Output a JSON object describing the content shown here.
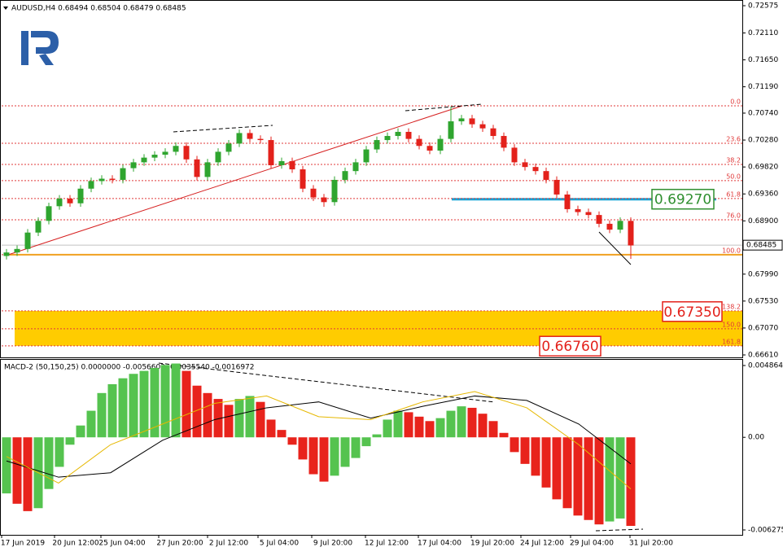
{
  "chart_data": {
    "type": "candlestick",
    "title": "AUDUSD,H4 0.68494 0.68504 0.68479 0.68485",
    "up_color": "#2fa52f",
    "down_color": "#e3211b",
    "open": [
      0.683,
      0.6836,
      0.6842,
      0.687,
      0.689,
      0.6915,
      0.6928,
      0.692,
      0.6945,
      0.6958,
      0.6962,
      0.696,
      0.698,
      0.699,
      0.6998,
      0.7003,
      0.7008,
      0.7018,
      0.6995,
      0.6965,
      0.699,
      0.7008,
      0.7022,
      0.704,
      0.703,
      0.7028,
      0.6985,
      0.6992,
      0.6978,
      0.6945,
      0.693,
      0.6922,
      0.696,
      0.6975,
      0.699,
      0.7012,
      0.7028,
      0.7035,
      0.7042,
      0.703,
      0.7018,
      0.701,
      0.703,
      0.706,
      0.7065,
      0.7055,
      0.7048,
      0.7035,
      0.7015,
      0.699,
      0.6982,
      0.6975,
      0.696,
      0.6935,
      0.691,
      0.6905,
      0.69,
      0.6885,
      0.6875,
      0.689
    ],
    "high": [
      0.6842,
      0.6848,
      0.6876,
      0.6896,
      0.6921,
      0.6934,
      0.6934,
      0.6951,
      0.6964,
      0.6968,
      0.6968,
      0.6986,
      0.6996,
      0.7004,
      0.7009,
      0.7014,
      0.7024,
      0.7024,
      0.7001,
      0.6996,
      0.7014,
      0.7028,
      0.7046,
      0.7046,
      0.7036,
      0.7034,
      0.6998,
      0.6998,
      0.6984,
      0.6951,
      0.6936,
      0.6966,
      0.6981,
      0.6996,
      0.7018,
      0.7034,
      0.7041,
      0.7048,
      0.7048,
      0.7036,
      0.7024,
      0.7036,
      0.7085,
      0.7071,
      0.7071,
      0.7061,
      0.7054,
      0.7041,
      0.7021,
      0.6996,
      0.6988,
      0.6981,
      0.6966,
      0.6941,
      0.6916,
      0.6911,
      0.6906,
      0.6891,
      0.6896,
      0.6896
    ],
    "low": [
      0.6824,
      0.683,
      0.6836,
      0.6864,
      0.6884,
      0.6909,
      0.6914,
      0.6914,
      0.6939,
      0.6952,
      0.6954,
      0.6954,
      0.6974,
      0.6984,
      0.6992,
      0.6997,
      0.7002,
      0.6989,
      0.6959,
      0.6959,
      0.6984,
      0.7002,
      0.7016,
      0.7024,
      0.7022,
      0.6979,
      0.6979,
      0.6972,
      0.6939,
      0.6924,
      0.6914,
      0.6916,
      0.6954,
      0.6969,
      0.6984,
      0.7006,
      0.7022,
      0.7029,
      0.7024,
      0.7012,
      0.7004,
      0.7004,
      0.7024,
      0.7054,
      0.7049,
      0.7042,
      0.7029,
      0.7009,
      0.6984,
      0.6976,
      0.6969,
      0.6954,
      0.6929,
      0.6904,
      0.6899,
      0.6894,
      0.6879,
      0.6869,
      0.6869,
      0.6825
    ],
    "close": [
      0.6836,
      0.6842,
      0.687,
      0.689,
      0.6915,
      0.6928,
      0.692,
      0.6945,
      0.6958,
      0.6962,
      0.696,
      0.698,
      0.699,
      0.6998,
      0.7003,
      0.7008,
      0.7018,
      0.6995,
      0.6965,
      0.699,
      0.7008,
      0.7022,
      0.704,
      0.703,
      0.7028,
      0.6985,
      0.6992,
      0.6978,
      0.6945,
      0.693,
      0.6922,
      0.696,
      0.6975,
      0.699,
      0.7012,
      0.7028,
      0.7035,
      0.7042,
      0.703,
      0.7018,
      0.701,
      0.703,
      0.706,
      0.7065,
      0.7055,
      0.7048,
      0.7035,
      0.7015,
      0.699,
      0.6982,
      0.6975,
      0.696,
      0.6935,
      0.691,
      0.6905,
      0.69,
      0.6885,
      0.6875,
      0.689,
      0.6848
    ],
    "ylim": [
      0.6661,
      0.72575
    ],
    "yticks": [
      {
        "value": 0.72575,
        "label": "0.72575"
      },
      {
        "value": 0.7211,
        "label": "0.72110"
      },
      {
        "value": 0.7165,
        "label": "0.71650"
      },
      {
        "value": 0.7119,
        "label": "0.71190"
      },
      {
        "value": 0.7074,
        "label": "0.70740"
      },
      {
        "value": 0.7028,
        "label": "0.70280"
      },
      {
        "value": 0.6982,
        "label": "0.69820"
      },
      {
        "value": 0.6936,
        "label": "0.69360"
      },
      {
        "value": 0.689,
        "label": "0.68900"
      },
      {
        "value": 0.6799,
        "label": "0.67990"
      },
      {
        "value": 0.6753,
        "label": "0.67530"
      },
      {
        "value": 0.6707,
        "label": "0.67070"
      },
      {
        "value": 0.6661,
        "label": "0.66610"
      }
    ],
    "current_price": 0.68485,
    "fib_color": "#e03a3a",
    "fib_levels": [
      {
        "label": "0.0",
        "price": 0.70865
      },
      {
        "label": "23.6",
        "price": 0.70226
      },
      {
        "label": "38.2",
        "price": 0.69864
      },
      {
        "label": "50.0",
        "price": 0.69587
      },
      {
        "label": "61.8",
        "price": 0.69281
      },
      {
        "label": "76.0",
        "price": 0.68919
      },
      {
        "label": "100.0",
        "price": 0.68322
      },
      {
        "label": "138.2",
        "price": 0.67362
      },
      {
        "label": "150.0",
        "price": 0.67057
      },
      {
        "label": "161.8",
        "price": 0.66765
      }
    ],
    "annotations": [
      {
        "value": 0.6927,
        "label": "0.69270",
        "color": "#2f8f2f"
      },
      {
        "value": 0.6735,
        "label": "0.67350",
        "color": "#e3211b"
      },
      {
        "value": 0.6676,
        "label": "0.66760",
        "color": "#e3211b"
      }
    ],
    "categories": [
      "17 Jun 2019",
      "20 Jun 12:00",
      "25 Jun 04:00",
      "27 Jun 20:00",
      "2 Jul 12:00",
      "5 Jul 04:00",
      "9 Jul 20:00",
      "12 Jul 12:00",
      "17 Jul 04:00",
      "19 Jul 20:00",
      "24 Jul 12:00",
      "29 Jul 04:00",
      "31 Jul 20:00"
    ],
    "macd": {
      "title": "MACD-2 (50,150,25) 0.0000000 -0.0056603 -0.0035540 -0.0016972",
      "ylim": [
        -0.0062753,
        0.0048648
      ],
      "yticks": [
        {
          "value": 0.0048648,
          "label": "0.0048648"
        },
        {
          "value": 0,
          "label": "0.00"
        },
        {
          "value": -0.0062753,
          "label": "-0.0062753"
        }
      ],
      "up_color": "#55c34f",
      "down_color": "#e8231c",
      "histogram": [
        -0.0038,
        -0.0045,
        -0.005,
        -0.0048,
        -0.0035,
        -0.002,
        -0.0005,
        0.0008,
        0.0018,
        0.003,
        0.0036,
        0.004,
        0.0043,
        0.0045,
        0.0047,
        0.0049,
        0.005,
        0.0045,
        0.0035,
        0.003,
        0.0026,
        0.0022,
        0.0026,
        0.0028,
        0.0024,
        0.0012,
        0.0005,
        -0.0005,
        -0.0015,
        -0.0025,
        -0.003,
        -0.0026,
        -0.002,
        -0.0014,
        -0.0006,
        0.0002,
        0.0012,
        0.0018,
        0.0017,
        0.0014,
        0.0011,
        0.0013,
        0.0018,
        0.0021,
        0.002,
        0.0016,
        0.0011,
        0.0003,
        -0.001,
        -0.0018,
        -0.0026,
        -0.0034,
        -0.0042,
        -0.0048,
        -0.0053,
        -0.0056,
        -0.0059,
        -0.0057,
        -0.0055,
        -0.006
      ],
      "series": [
        {
          "color": "#000000",
          "values": [
            -0.0016,
            -0.0027,
            -0.0024,
            -0.0002,
            0.0012,
            0.002,
            0.0024,
            0.0013,
            0.0021,
            0.0028,
            0.0025,
            0.0009,
            -0.0018
          ]
        },
        {
          "color": "#e6b800",
          "values": [
            -0.0013,
            -0.0031,
            -0.0005,
            0.0009,
            0.0023,
            0.0028,
            0.0014,
            0.0012,
            0.0024,
            0.0031,
            0.002,
            -0.0005,
            -0.0035
          ]
        }
      ]
    }
  }
}
